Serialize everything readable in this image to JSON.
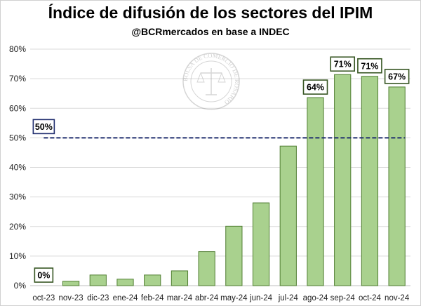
{
  "title": "Índice de difusión de los sectores del IPIM",
  "subtitle": "@BCRmercados en base a INDEC",
  "watermark_text": "BOLSA DE COMERCIO DE ROSARIO",
  "colors": {
    "bar_fill": "#a9d18e",
    "bar_stroke": "#507e32",
    "reference_line": "#1f2d6e",
    "reference_label_border": "#1f2d6e",
    "data_label_border": "#375623",
    "grid": "#d9d9d9"
  },
  "chart_data": {
    "type": "bar",
    "title": "Índice de difusión de los sectores del IPIM",
    "subtitle": "@BCRmercados en base a INDEC",
    "categories": [
      "oct-23",
      "nov-23",
      "dic-23",
      "ene-24",
      "feb-24",
      "mar-24",
      "abr-24",
      "may-24",
      "jun-24",
      "jul-24",
      "ago-24",
      "sep-24",
      "oct-24",
      "nov-24"
    ],
    "values": [
      0,
      1.5,
      3.6,
      2.2,
      3.6,
      5.0,
      11.5,
      20.1,
      28.0,
      47.2,
      63.6,
      71.4,
      70.8,
      67.2
    ],
    "ylim": [
      0,
      80
    ],
    "yticks": [
      "0%",
      "10%",
      "20%",
      "30%",
      "40%",
      "50%",
      "60%",
      "70%",
      "80%"
    ],
    "grid": true,
    "legend": "none",
    "reference_line": {
      "value": 50,
      "label": "50%"
    },
    "data_labels": [
      {
        "category": "oct-23",
        "text": "0%"
      },
      {
        "category": "ago-24",
        "text": "64%"
      },
      {
        "category": "sep-24",
        "text": "71%"
      },
      {
        "category": "oct-24",
        "text": "71%"
      },
      {
        "category": "nov-24",
        "text": "67%"
      }
    ]
  }
}
